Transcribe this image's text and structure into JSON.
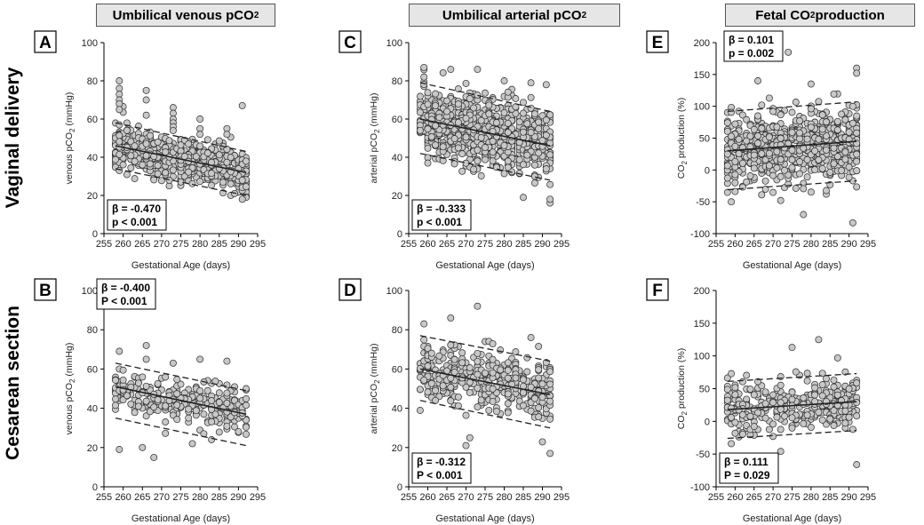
{
  "column_headers": [
    {
      "text": "Umbilical venous pCO",
      "sub": "2"
    },
    {
      "text": "Umbilical arterial pCO",
      "sub": "2"
    },
    {
      "text": "Fetal CO",
      "sub": "2",
      "tail": " production"
    }
  ],
  "row_labels": [
    "Vaginal delivery",
    "Cesarean section"
  ],
  "colors": {
    "marker_fill": "#c8c8c8",
    "marker_stroke": "#2b2b2b",
    "line": "#222222"
  },
  "chart_data": [
    {
      "id": "A",
      "type": "scatter",
      "title": "Umbilical venous pCO2",
      "ylabel": "venous pCO",
      "ylabel_sub": "2",
      "ylabel_tail": " (mmHg)",
      "xlabel": "Gestational Age (days)",
      "xlim": [
        255,
        295
      ],
      "ylim": [
        0,
        100
      ],
      "xticks": [
        "255",
        "260",
        "265",
        "270",
        "275",
        "280",
        "285",
        "290",
        "295"
      ],
      "yticks": [
        "0",
        "20",
        "40",
        "60",
        "80",
        "100"
      ],
      "beta_text": "β = -0.470",
      "p_text": "p < 0.001",
      "annotation_position": "bottom-left",
      "fit": {
        "x": [
          258,
          292
        ],
        "y": [
          46,
          32
        ]
      },
      "band_upper": {
        "x": [
          258,
          292
        ],
        "y": [
          58,
          43
        ]
      },
      "band_lower": {
        "x": [
          258,
          292
        ],
        "y": [
          34,
          20
        ]
      },
      "points": {
        "n": 650,
        "center_start": 46,
        "center_end": 32,
        "spread": 6,
        "seed": 11,
        "extra": [
          [
            259,
            80
          ],
          [
            259,
            76
          ],
          [
            259,
            73
          ],
          [
            259,
            70
          ],
          [
            259,
            68
          ],
          [
            259,
            65
          ],
          [
            266,
            75
          ],
          [
            266,
            70
          ],
          [
            266,
            62
          ],
          [
            273,
            66
          ],
          [
            273,
            63
          ],
          [
            273,
            60
          ],
          [
            273,
            58
          ],
          [
            273,
            56
          ],
          [
            273,
            54
          ],
          [
            280,
            60
          ],
          [
            280,
            55
          ],
          [
            280,
            52
          ],
          [
            287,
            55
          ],
          [
            287,
            52
          ],
          [
            291,
            67
          ],
          [
            292,
            19
          ],
          [
            291,
            18
          ],
          [
            289,
            21
          ]
        ]
      }
    },
    {
      "id": "B",
      "type": "scatter",
      "title": "Umbilical venous pCO2",
      "ylabel": "venous pCO",
      "ylabel_sub": "2",
      "ylabel_tail": " (mmHg)",
      "xlabel": "Gestational Age (days)",
      "xlim": [
        255,
        295
      ],
      "ylim": [
        0,
        100
      ],
      "xticks": [
        "255",
        "260",
        "265",
        "270",
        "275",
        "280",
        "285",
        "290",
        "295"
      ],
      "yticks": [
        "0",
        "20",
        "40",
        "60",
        "80",
        "100"
      ],
      "beta_text": "β = -0.400",
      "p_text": "P < 0.001",
      "annotation_position": "top-left",
      "fit": {
        "x": [
          258,
          292
        ],
        "y": [
          51,
          37
        ]
      },
      "band_upper": {
        "x": [
          258,
          292
        ],
        "y": [
          63,
          49
        ]
      },
      "band_lower": {
        "x": [
          258,
          292
        ],
        "y": [
          35,
          21
        ]
      },
      "points": {
        "n": 300,
        "center_start": 50,
        "center_end": 38,
        "spread": 5,
        "seed": 23,
        "extra": [
          [
            259,
            19
          ],
          [
            265,
            20
          ],
          [
            268,
            15
          ],
          [
            259,
            69
          ],
          [
            266,
            72
          ],
          [
            266,
            65
          ],
          [
            273,
            63
          ],
          [
            280,
            65
          ],
          [
            287,
            64
          ],
          [
            292,
            50
          ],
          [
            281,
            27
          ],
          [
            278,
            22
          ],
          [
            283,
            24
          ]
        ]
      }
    },
    {
      "id": "C",
      "type": "scatter",
      "title": "Umbilical arterial pCO2",
      "ylabel": "arterial pCO",
      "ylabel_sub": "2",
      "ylabel_tail": " (mmHg)",
      "xlabel": "Gestational Age (days)",
      "xlim": [
        255,
        295
      ],
      "ylim": [
        0,
        100
      ],
      "xticks": [
        "255",
        "260",
        "265",
        "270",
        "275",
        "280",
        "285",
        "290",
        "295"
      ],
      "yticks": [
        "0",
        "20",
        "40",
        "60",
        "80",
        "100"
      ],
      "beta_text": "β = -0.333",
      "p_text": "p < 0.001",
      "annotation_position": "bottom-left",
      "fit": {
        "x": [
          258,
          292
        ],
        "y": [
          60,
          46
        ]
      },
      "band_upper": {
        "x": [
          258,
          292
        ],
        "y": [
          79,
          64
        ]
      },
      "band_lower": {
        "x": [
          258,
          292
        ],
        "y": [
          42,
          28
        ]
      },
      "points": {
        "n": 850,
        "center_start": 59,
        "center_end": 47,
        "spread": 9,
        "seed": 37,
        "extra": [
          [
            259,
            87
          ],
          [
            259,
            82
          ],
          [
            266,
            86
          ],
          [
            273,
            86
          ],
          [
            280,
            80
          ],
          [
            287,
            79
          ],
          [
            292,
            16
          ],
          [
            292,
            18
          ],
          [
            285,
            19
          ],
          [
            291,
            78
          ]
        ]
      }
    },
    {
      "id": "D",
      "type": "scatter",
      "title": "Umbilical arterial pCO2",
      "ylabel": "arterial pCO",
      "ylabel_sub": "2",
      "ylabel_tail": " (mmHg)",
      "xlabel": "Gestational Age (days)",
      "xlim": [
        255,
        295
      ],
      "ylim": [
        0,
        100
      ],
      "xticks": [
        "255",
        "260",
        "265",
        "270",
        "275",
        "280",
        "285",
        "290",
        "295"
      ],
      "yticks": [
        "0",
        "20",
        "40",
        "60",
        "80",
        "100"
      ],
      "beta_text": "β = -0.312",
      "p_text": "P < 0.001",
      "annotation_position": "bottom-left",
      "fit": {
        "x": [
          258,
          292
        ],
        "y": [
          60,
          47
        ]
      },
      "band_upper": {
        "x": [
          258,
          292
        ],
        "y": [
          77,
          64
        ]
      },
      "band_lower": {
        "x": [
          258,
          292
        ],
        "y": [
          44,
          30
        ]
      },
      "points": {
        "n": 380,
        "center_start": 59,
        "center_end": 48,
        "spread": 8,
        "seed": 41,
        "extra": [
          [
            259,
            83
          ],
          [
            266,
            86
          ],
          [
            273,
            92
          ],
          [
            287,
            76
          ],
          [
            292,
            17
          ],
          [
            270,
            21
          ],
          [
            271,
            25
          ],
          [
            262,
            44
          ]
        ]
      }
    },
    {
      "id": "E",
      "type": "scatter",
      "title": "Fetal CO2 production",
      "ylabel": "CO",
      "ylabel_sub": "2",
      "ylabel_tail": " production (%)",
      "xlabel": "Gestational Age (days)",
      "xlim": [
        255,
        295
      ],
      "ylim": [
        -100,
        200
      ],
      "xticks": [
        "255",
        "260",
        "265",
        "270",
        "275",
        "280",
        "285",
        "290",
        "295"
      ],
      "yticks": [
        "-100",
        "-50",
        "0",
        "50",
        "100",
        "150",
        "200"
      ],
      "beta_text": "β = 0.101",
      "p_text": "p = 0.002",
      "annotation_position": "top-left",
      "fit": {
        "x": [
          258,
          292
        ],
        "y": [
          30,
          45
        ]
      },
      "band_upper": {
        "x": [
          258,
          292
        ],
        "y": [
          92,
          107
        ]
      },
      "band_lower": {
        "x": [
          258,
          292
        ],
        "y": [
          -31,
          -17
        ]
      },
      "points": {
        "n": 720,
        "center_start": 30,
        "center_end": 45,
        "spread": 28,
        "seed": 53,
        "extra": [
          [
            274,
            185
          ],
          [
            292,
            160
          ],
          [
            292,
            152
          ],
          [
            280,
            135
          ],
          [
            266,
            140
          ],
          [
            291,
            -83
          ],
          [
            278,
            -70
          ],
          [
            259,
            -50
          ],
          [
            272,
            -48
          ]
        ]
      }
    },
    {
      "id": "F",
      "type": "scatter",
      "title": "Fetal CO2 production",
      "ylabel": "CO",
      "ylabel_sub": "2",
      "ylabel_tail": " production (%)",
      "xlabel": "Gestational Age (days)",
      "xlim": [
        255,
        295
      ],
      "ylim": [
        -100,
        200
      ],
      "xticks": [
        "255",
        "260",
        "265",
        "270",
        "275",
        "280",
        "285",
        "290",
        "295"
      ],
      "yticks": [
        "-100",
        "-50",
        "0",
        "50",
        "100",
        "150",
        "200"
      ],
      "beta_text": "β = 0.111",
      "p_text": "P = 0.029",
      "annotation_position": "bottom-left",
      "fit": {
        "x": [
          258,
          292
        ],
        "y": [
          18,
          30
        ]
      },
      "band_upper": {
        "x": [
          258,
          292
        ],
        "y": [
          61,
          73
        ]
      },
      "band_lower": {
        "x": [
          258,
          292
        ],
        "y": [
          -26,
          -14
        ]
      },
      "points": {
        "n": 330,
        "center_start": 18,
        "center_end": 30,
        "spread": 18,
        "seed": 67,
        "extra": [
          [
            282,
            125
          ],
          [
            275,
            113
          ],
          [
            287,
            97
          ],
          [
            292,
            -66
          ],
          [
            272,
            -46
          ],
          [
            259,
            73
          ],
          [
            270,
            -23
          ]
        ]
      }
    }
  ]
}
